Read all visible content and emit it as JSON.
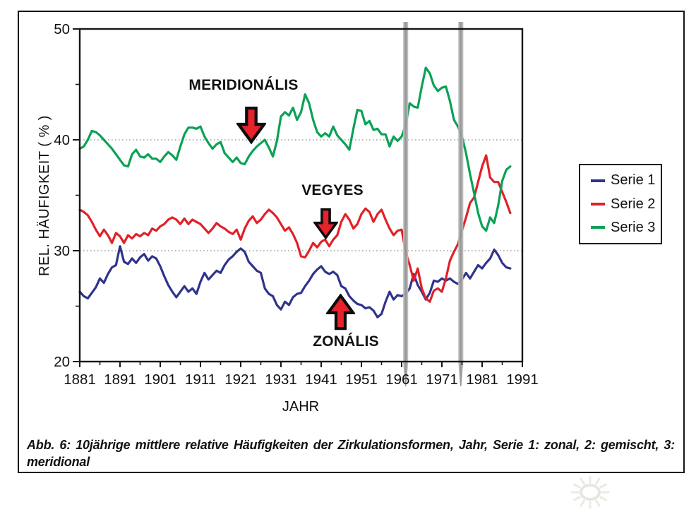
{
  "figure": {
    "caption": "Abb. 6: 10jährige mittlere relative Häufigkeiten der Zirkulationsformen, Jahr, Serie 1: zonal, 2: gemischt, 3: meridional"
  },
  "colors": {
    "arrow_red": "#e8212b",
    "arrow_outline": "#0d0d0d",
    "marker_gray_edge": "#c6c6c6",
    "marker_gray_core": "#8f8f8f",
    "grid_gray": "#8a8a8a",
    "axis_black": "#161616"
  },
  "legend": {
    "items": [
      {
        "label": "Serie 1"
      },
      {
        "label": "Serie 2"
      },
      {
        "label": "Serie 3"
      }
    ]
  },
  "chart_data": {
    "type": "line",
    "title": "",
    "xlabel": "JAHR",
    "ylabel": "REL. HÄUFIGKEIT ( % )",
    "xlim": [
      1881,
      1991
    ],
    "ylim": [
      20,
      50
    ],
    "x_major_ticks": [
      1881,
      1891,
      1901,
      1911,
      1921,
      1931,
      1941,
      1951,
      1961,
      1971,
      1981,
      1991
    ],
    "x_minor_ticks": [
      1886,
      1896,
      1906,
      1916,
      1926,
      1936,
      1946,
      1956,
      1966,
      1976,
      1986
    ],
    "y_major_ticks": [
      50,
      40,
      30,
      20
    ],
    "y_minor_ticks": [
      45,
      35,
      25
    ],
    "gridlines_at": [
      40,
      30
    ],
    "grid_style": "dotted",
    "legend_position": "right-outside",
    "marker_years": [
      1962,
      1975.7
    ],
    "x_start_year": 1881,
    "annotations": [
      {
        "text": "MERIDIONÁLIS",
        "arrow": "down",
        "x_year": 1923.6,
        "arrow_tip_value": 39.7
      },
      {
        "text": "VEGYES",
        "arrow": "down",
        "x_year": 1942.0,
        "arrow_tip_value": 31.0
      },
      {
        "text": "ZONÁLIS",
        "arrow": "up",
        "x_year": 1945.9,
        "arrow_tip_value": 26.0
      }
    ],
    "series": [
      {
        "name": "Serie 1",
        "meaning": "zonal",
        "color": "#30338c",
        "values": [
          26.3,
          25.9,
          25.7,
          26.2,
          26.7,
          27.5,
          27.1,
          27.9,
          28.5,
          28.7,
          30.4,
          29.0,
          28.8,
          29.3,
          28.9,
          29.4,
          29.7,
          29.1,
          29.5,
          29.3,
          28.6,
          27.7,
          26.9,
          26.3,
          25.8,
          26.3,
          26.8,
          26.3,
          26.6,
          26.1,
          27.2,
          28.0,
          27.4,
          27.8,
          28.2,
          28.0,
          28.7,
          29.2,
          29.5,
          29.9,
          30.2,
          29.9,
          29.0,
          28.6,
          28.2,
          28.0,
          26.6,
          26.1,
          25.9,
          25.1,
          24.7,
          25.4,
          25.1,
          25.8,
          26.1,
          26.2,
          26.8,
          27.3,
          27.9,
          28.3,
          28.6,
          28.1,
          27.9,
          28.1,
          27.8,
          26.8,
          26.6,
          25.9,
          25.5,
          25.2,
          25.1,
          24.8,
          24.9,
          24.6,
          24.0,
          24.3,
          25.4,
          26.3,
          25.6,
          26.0,
          25.9,
          26.1,
          26.6,
          27.9,
          26.9,
          26.3,
          25.6,
          26.2,
          27.3,
          27.2,
          27.5,
          27.3,
          27.5,
          27.2,
          27.0,
          27.4,
          28.0,
          27.5,
          28.1,
          28.7,
          28.4,
          28.9,
          29.3,
          30.1,
          29.6,
          28.9,
          28.5,
          28.4
        ]
      },
      {
        "name": "Serie 2",
        "meaning": "gemischt",
        "color": "#e02128",
        "values": [
          33.7,
          33.5,
          33.2,
          32.6,
          31.9,
          31.3,
          31.9,
          31.4,
          30.7,
          31.6,
          31.3,
          30.7,
          31.4,
          31.1,
          31.5,
          31.3,
          31.6,
          31.4,
          32.0,
          31.8,
          32.2,
          32.4,
          32.8,
          33.0,
          32.8,
          32.4,
          32.9,
          32.4,
          32.8,
          32.6,
          32.4,
          32.0,
          31.6,
          32.0,
          32.5,
          32.2,
          32.0,
          31.7,
          31.5,
          31.9,
          31.0,
          32.0,
          32.7,
          33.1,
          32.5,
          32.8,
          33.3,
          33.7,
          33.4,
          33.0,
          32.4,
          31.8,
          32.1,
          31.5,
          30.7,
          29.5,
          29.4,
          30.0,
          30.7,
          30.3,
          30.8,
          31.0,
          30.4,
          31.0,
          31.4,
          32.6,
          33.3,
          32.8,
          32.0,
          32.4,
          33.3,
          33.8,
          33.5,
          32.6,
          33.3,
          33.7,
          32.8,
          32.0,
          31.4,
          31.8,
          31.9,
          29.9,
          28.7,
          27.3,
          28.4,
          26.6,
          25.7,
          25.4,
          26.4,
          26.6,
          26.3,
          27.5,
          29.1,
          29.9,
          30.6,
          31.8,
          33.0,
          34.3,
          34.8,
          36.2,
          37.6,
          38.6,
          36.6,
          36.2,
          36.2,
          35.3,
          34.4,
          33.4
        ]
      },
      {
        "name": "Serie 3",
        "meaning": "meridional",
        "color": "#0ba156",
        "values": [
          39.2,
          39.4,
          40.0,
          40.8,
          40.7,
          40.4,
          40.0,
          39.6,
          39.2,
          38.7,
          38.2,
          37.7,
          37.6,
          38.7,
          39.1,
          38.5,
          38.4,
          38.7,
          38.3,
          38.3,
          38.0,
          38.5,
          38.9,
          38.6,
          38.2,
          39.4,
          40.5,
          41.1,
          41.1,
          41.0,
          41.2,
          40.3,
          39.7,
          39.2,
          39.6,
          39.8,
          38.8,
          38.4,
          38.0,
          38.4,
          37.9,
          37.8,
          38.5,
          39.0,
          39.4,
          39.7,
          40.0,
          39.3,
          38.5,
          39.9,
          42.1,
          42.5,
          42.2,
          42.9,
          41.8,
          42.5,
          44.1,
          43.3,
          41.8,
          40.7,
          40.3,
          40.6,
          40.3,
          41.2,
          40.4,
          40.0,
          39.6,
          39.1,
          41.0,
          42.7,
          42.6,
          41.4,
          41.7,
          40.9,
          41.0,
          40.5,
          40.5,
          39.4,
          40.3,
          39.9,
          40.3,
          41.3,
          43.3,
          43.0,
          42.9,
          44.8,
          46.5,
          46.0,
          44.9,
          44.4,
          44.7,
          44.8,
          43.5,
          41.8,
          41.2,
          40.3,
          38.8,
          36.9,
          35.2,
          33.4,
          32.2,
          31.8,
          33.0,
          32.5,
          34.1,
          36.3,
          37.3,
          37.6
        ]
      }
    ]
  }
}
